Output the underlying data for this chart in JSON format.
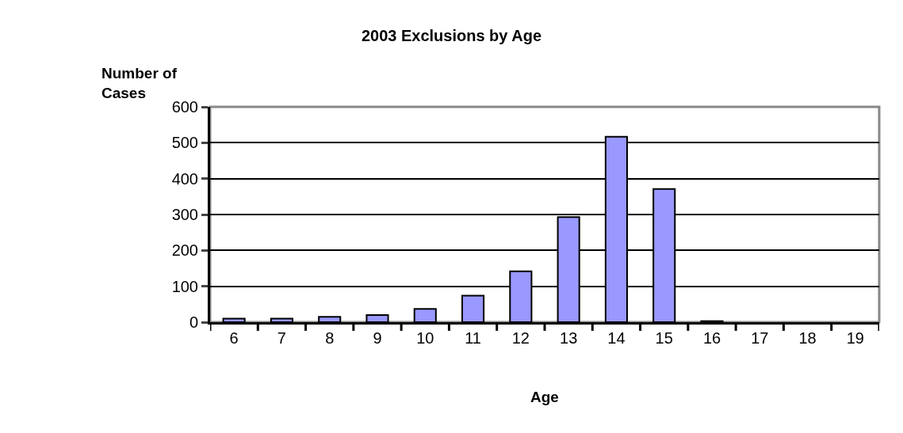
{
  "chart_data": {
    "type": "bar",
    "title": "2003 Exclusions by Age",
    "ylabel": "Number of Cases",
    "xlabel": "Age",
    "categories": [
      "6",
      "7",
      "8",
      "9",
      "10",
      "11",
      "12",
      "13",
      "14",
      "15",
      "16",
      "17",
      "18",
      "19"
    ],
    "values": [
      10,
      10,
      15,
      20,
      37,
      74,
      142,
      293,
      517,
      371,
      3,
      0,
      0,
      0
    ],
    "color": "#9999ff",
    "ylim": [
      0,
      600
    ],
    "yticks": [
      0,
      100,
      200,
      300,
      400,
      500,
      600
    ],
    "grid": "y",
    "legend": false
  }
}
